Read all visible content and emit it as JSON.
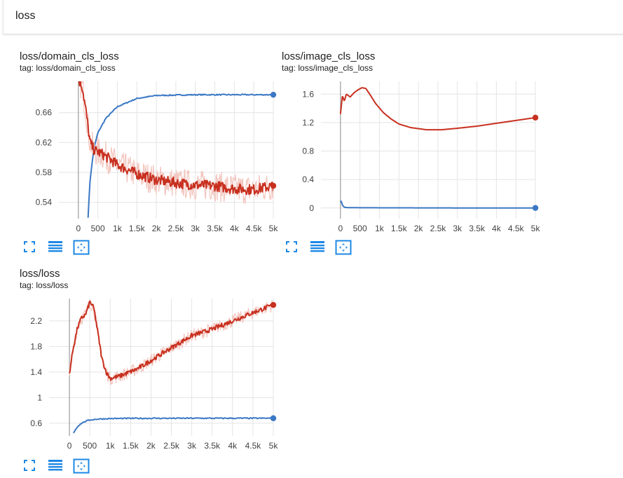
{
  "header": {
    "title": "loss"
  },
  "colors": {
    "series_blue": "#3a78c4",
    "series_red": "#c8301f",
    "raw_red": "#f3c6bf",
    "grid": "#e4e4e4",
    "axis": "#9e9e9e",
    "icon": "#1e88e5"
  },
  "icons": [
    "fullscreen-icon",
    "data-table-icon",
    "fit-domain-icon"
  ],
  "chart_data": [
    {
      "title": "loss/domain_cls_loss",
      "tag": "tag: loss/domain_cls_loss",
      "type": "line",
      "xlim": [
        -500,
        5000
      ],
      "ylim": [
        0.518,
        0.702
      ],
      "xticks": [
        0,
        500,
        1000,
        1500,
        2000,
        2500,
        3000,
        3500,
        4000,
        4500,
        5000
      ],
      "xtick_labels": [
        "0",
        "500",
        "1k",
        "1.5k",
        "2k",
        "2.5k",
        "3k",
        "3.5k",
        "4k",
        "4.5k",
        "5k"
      ],
      "yticks": [
        0.54,
        0.58,
        0.62,
        0.66
      ],
      "ytick_labels": [
        "0.54",
        "0.58",
        "0.62",
        "0.66"
      ],
      "series": [
        {
          "color": "blue",
          "x": [
            250,
            300,
            400,
            500,
            700,
            1000,
            1500,
            2000,
            3000,
            4000,
            5000
          ],
          "y": [
            0.52,
            0.57,
            0.612,
            0.633,
            0.652,
            0.668,
            0.679,
            0.683,
            0.684,
            0.684,
            0.684
          ]
        },
        {
          "color": "red",
          "x": [
            0,
            100,
            200,
            300,
            400,
            600,
            800,
            1000,
            1500,
            2000,
            2500,
            3000,
            3500,
            4000,
            4500,
            5000
          ],
          "y": [
            0.705,
            0.695,
            0.66,
            0.62,
            0.61,
            0.605,
            0.598,
            0.59,
            0.578,
            0.57,
            0.566,
            0.563,
            0.562,
            0.558,
            0.557,
            0.562
          ]
        }
      ]
    },
    {
      "title": "loss/image_cls_loss",
      "tag": "tag: loss/image_cls_loss",
      "type": "line",
      "xlim": [
        -500,
        5000
      ],
      "ylim": [
        -0.15,
        1.78
      ],
      "xticks": [
        0,
        500,
        1000,
        1500,
        2000,
        2500,
        3000,
        3500,
        4000,
        4500,
        5000
      ],
      "xtick_labels": [
        "0",
        "500",
        "1k",
        "1.5k",
        "2k",
        "2.5k",
        "3k",
        "3.5k",
        "4k",
        "4.5k",
        "5k"
      ],
      "yticks": [
        0,
        0.4,
        0.8,
        1.2,
        1.6
      ],
      "ytick_labels": [
        "0",
        "0.4",
        "0.8",
        "1.2",
        "1.6"
      ],
      "series": [
        {
          "color": "red",
          "x": [
            0,
            50,
            100,
            150,
            250,
            350,
            450,
            550,
            650,
            750,
            900,
            1100,
            1300,
            1500,
            1800,
            2200,
            2600,
            3000,
            3500,
            4000,
            4500,
            5000
          ],
          "y": [
            1.32,
            1.58,
            1.5,
            1.6,
            1.56,
            1.62,
            1.66,
            1.69,
            1.68,
            1.6,
            1.47,
            1.34,
            1.25,
            1.18,
            1.13,
            1.1,
            1.1,
            1.12,
            1.15,
            1.19,
            1.23,
            1.27
          ]
        },
        {
          "color": "blue",
          "x": [
            0,
            20,
            50,
            100,
            200,
            500,
            1000,
            2000,
            3000,
            4000,
            5000
          ],
          "y": [
            0.08,
            0.1,
            0.04,
            0.01,
            0.005,
            0.004,
            0.003,
            0.002,
            0.001,
            0.001,
            0.001
          ]
        }
      ]
    },
    {
      "title": "loss/loss",
      "tag": "tag: loss/loss",
      "type": "line",
      "xlim": [
        -500,
        5000
      ],
      "ylim": [
        0.4,
        2.55
      ],
      "xticks": [
        0,
        500,
        1000,
        1500,
        2000,
        2500,
        3000,
        3500,
        4000,
        4500,
        5000
      ],
      "xtick_labels": [
        "0",
        "500",
        "1k",
        "1.5k",
        "2k",
        "2.5k",
        "3k",
        "3.5k",
        "4k",
        "4.5k",
        "5k"
      ],
      "yticks": [
        0.6,
        1,
        1.4,
        1.8,
        2.2
      ],
      "ytick_labels": [
        "0.6",
        "1",
        "1.4",
        "1.8",
        "2.2"
      ],
      "series": [
        {
          "color": "red",
          "x": [
            0,
            100,
            200,
            300,
            400,
            500,
            600,
            700,
            800,
            900,
            1000,
            1200,
            1400,
            1600,
            1800,
            2000,
            2500,
            3000,
            3500,
            4000,
            4500,
            5000
          ],
          "y": [
            1.38,
            1.8,
            2.1,
            2.25,
            2.3,
            2.5,
            2.4,
            2.0,
            1.6,
            1.4,
            1.3,
            1.33,
            1.38,
            1.43,
            1.5,
            1.58,
            1.78,
            1.97,
            2.07,
            2.2,
            2.33,
            2.45
          ]
        },
        {
          "color": "blue",
          "x": [
            100,
            200,
            300,
            400,
            500,
            700,
            1000,
            1500,
            2000,
            3000,
            4000,
            5000
          ],
          "y": [
            0.45,
            0.55,
            0.6,
            0.63,
            0.65,
            0.665,
            0.672,
            0.675,
            0.676,
            0.677,
            0.677,
            0.677
          ]
        }
      ]
    }
  ]
}
